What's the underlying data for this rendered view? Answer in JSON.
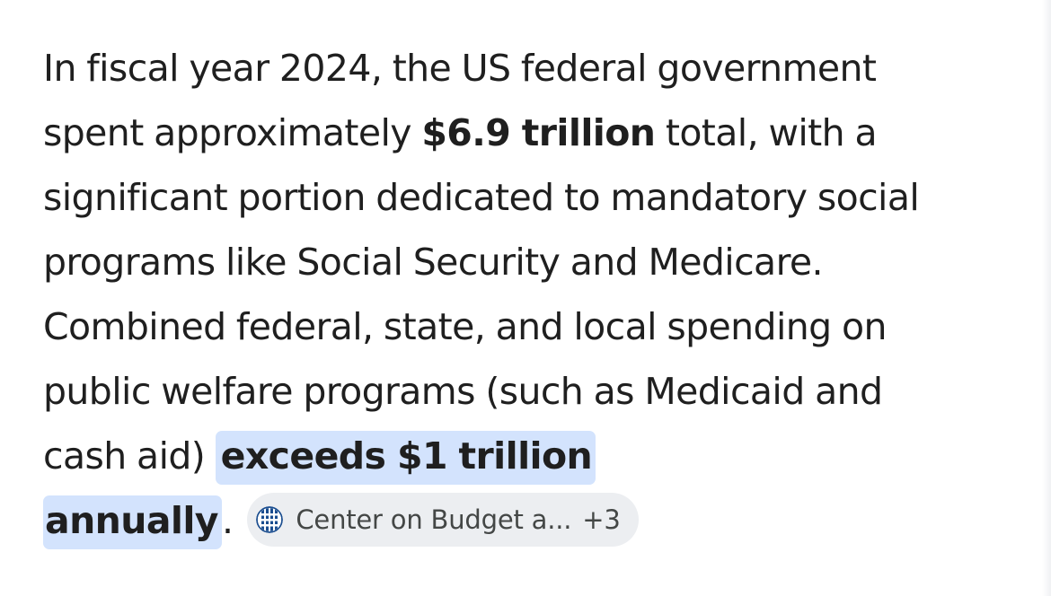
{
  "answer": {
    "line1": "In fiscal year 2024, the US federal government",
    "line2_pre": "spent approximately ",
    "line2_bold": "$6.9 trillion",
    "line2_post": " total, with a",
    "line3": "significant portion dedicated to mandatory social",
    "line4": "programs like Social Security and Medicare.",
    "line5": "Combined federal, state, and local spending on",
    "line6": "public welfare programs (such as Medicaid and",
    "line7_pre": "cash aid) ",
    "line7_highlight": "exceeds $1 trillion",
    "line8_highlight": "annually",
    "line8_post": "."
  },
  "source_chip": {
    "label": "Center on Budget a...",
    "more": "+3",
    "icon": "globe-favicon-icon"
  },
  "colors": {
    "text": "#1f1f1f",
    "highlight": "#d3e3fd",
    "chip_bg": "#eceef1",
    "chip_text": "#444746",
    "favicon_blue": "#1a4d8f"
  }
}
